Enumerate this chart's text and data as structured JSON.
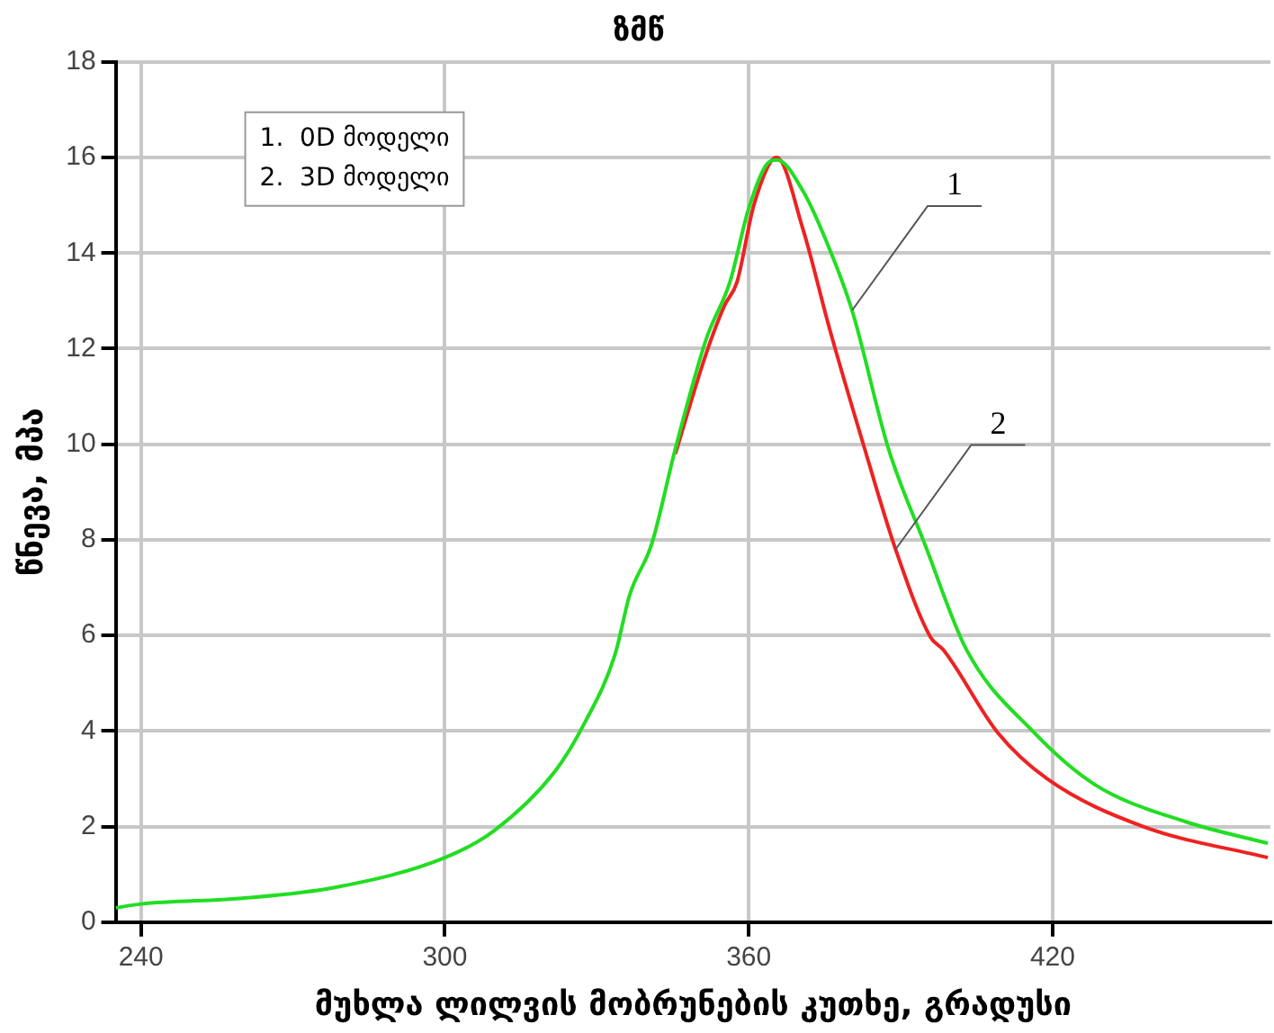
{
  "chart_data": {
    "type": "line",
    "title": "ზმწ",
    "xlabel": "მუხლა ლილვის მობრუნების კუთხე, გრადუსი",
    "ylabel": "წნევა, მპა",
    "xlim": [
      235,
      463
    ],
    "xticks": [
      240,
      300,
      360,
      420
    ],
    "ylim": [
      0,
      18
    ],
    "yticks": [
      0,
      2,
      4,
      6,
      8,
      10,
      12,
      14,
      16,
      18
    ],
    "grid": true,
    "marker": "none",
    "line_style": "solid",
    "series": [
      {
        "color": "#22dd22",
        "x": [
          235,
          240,
          260,
          278.5,
          300,
          309.8,
          321.7,
          327.5,
          333.6,
          336.5,
          340.8,
          345.5,
          351.6,
          356.3,
          359.9,
          363.5,
          365.6,
          370.7,
          375.7,
          380.4,
          387.6,
          394.8,
          403,
          416.4,
          428.3,
          446.3,
          462.5
        ],
        "values": [
          0.3,
          0.38,
          0.5,
          0.73,
          1.35,
          1.92,
          3.15,
          4.15,
          5.6,
          6.85,
          7.9,
          9.9,
          12.2,
          13.4,
          14.9,
          15.85,
          15.95,
          15.3,
          14.15,
          12.8,
          9.9,
          7.9,
          5.7,
          3.96,
          2.88,
          2.1,
          1.65
        ]
      },
      {
        "color": "#ee2222",
        "x": [
          345.5,
          351.6,
          355.2,
          357.7,
          361,
          365.5,
          370.7,
          376,
          382.9,
          389,
          395.9,
          398.4,
          409.2,
          418.9,
          437.9,
          462.5
        ],
        "values": [
          9.8,
          11.9,
          12.9,
          13.4,
          15,
          16,
          14.5,
          12.4,
          9.9,
          7.8,
          5.96,
          5.7,
          3.96,
          3.0,
          2.0,
          1.35
        ]
      }
    ],
    "annotations": [
      "1.  0D მოდელი",
      "2.  3D მოდელი",
      {
        "text": "1",
        "x": 380.4,
        "y": 12.8
      },
      {
        "text": "2",
        "x": 389,
        "y": 7.8
      }
    ]
  }
}
